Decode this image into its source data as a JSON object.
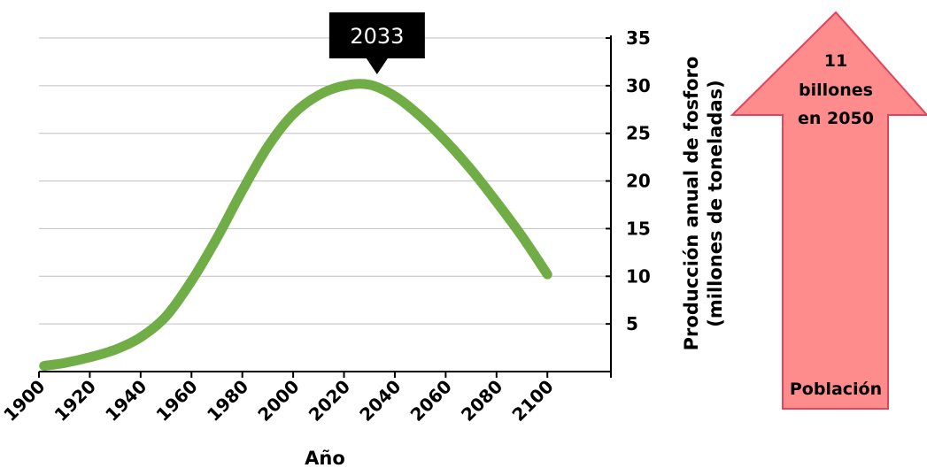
{
  "chart_data": {
    "type": "line",
    "xlabel": "Año",
    "ylabel_line1": "Producción anual de fosforo",
    "ylabel_line2": "(millones de toneladas)",
    "x_ticks": [
      1900,
      1920,
      1940,
      1960,
      1980,
      2000,
      2020,
      2040,
      2060,
      2080,
      2100
    ],
    "y_ticks": [
      5,
      10,
      15,
      20,
      25,
      30,
      35
    ],
    "xlim": [
      1900,
      2125
    ],
    "ylim": [
      0,
      35
    ],
    "grid": true,
    "y_axis_position": "right",
    "series": [
      {
        "color": "#70ad47",
        "points": [
          [
            1902,
            0.6
          ],
          [
            1910,
            0.9
          ],
          [
            1920,
            1.5
          ],
          [
            1930,
            2.3
          ],
          [
            1940,
            3.6
          ],
          [
            1950,
            5.8
          ],
          [
            1960,
            9.5
          ],
          [
            1970,
            14.0
          ],
          [
            1980,
            19.0
          ],
          [
            1990,
            23.6
          ],
          [
            2000,
            27.0
          ],
          [
            2010,
            29.0
          ],
          [
            2020,
            30.0
          ],
          [
            2030,
            30.1
          ],
          [
            2040,
            28.9
          ],
          [
            2050,
            26.8
          ],
          [
            2060,
            24.2
          ],
          [
            2070,
            21.2
          ],
          [
            2080,
            17.8
          ],
          [
            2090,
            14.2
          ],
          [
            2100,
            10.2
          ]
        ]
      }
    ],
    "callout": {
      "label": "2033",
      "x": 2033,
      "y": 35
    }
  },
  "arrow": {
    "top_line1": "11",
    "top_line2": "billones",
    "top_line3": "en 2050",
    "bottom_label": "Población",
    "fill": "#ff8c8c",
    "stroke": "#e2445c"
  }
}
